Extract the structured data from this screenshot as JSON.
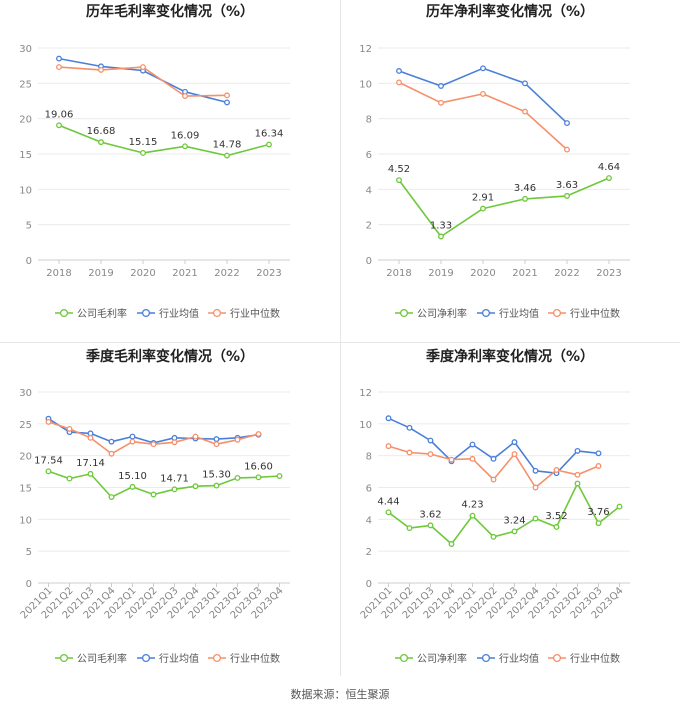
{
  "colors": {
    "company": "#6dc83a",
    "avg": "#4a7fd9",
    "median": "#f5906a",
    "axis_text": "#888888",
    "grid": "#ebebeb",
    "title": "#222222"
  },
  "source_text": "数据来源：恒生聚源",
  "chart_data": [
    {
      "type": "line",
      "title": "历年毛利率变化情况（%）",
      "categories": [
        "2018",
        "2019",
        "2020",
        "2021",
        "2022",
        "2023"
      ],
      "ylim": [
        0,
        30
      ],
      "yticks": [
        0,
        5,
        10,
        15,
        20,
        25,
        30
      ],
      "grid": true,
      "legend": "bottom",
      "series": [
        {
          "name": "公司毛利率",
          "values": [
            19.06,
            16.68,
            15.15,
            16.09,
            14.78,
            16.34
          ],
          "labels": [
            "19.06",
            "16.68",
            "15.15",
            "16.09",
            "14.78",
            "16.34"
          ]
        },
        {
          "name": "行业均值",
          "values": [
            28.5,
            27.4,
            26.8,
            23.8,
            22.3,
            null
          ]
        },
        {
          "name": "行业中位数",
          "values": [
            27.3,
            26.9,
            27.3,
            23.2,
            23.3,
            null
          ]
        }
      ]
    },
    {
      "type": "line",
      "title": "历年净利率变化情况（%）",
      "categories": [
        "2018",
        "2019",
        "2020",
        "2021",
        "2022",
        "2023"
      ],
      "ylim": [
        0,
        12
      ],
      "yticks": [
        0,
        2,
        4,
        6,
        8,
        10,
        12
      ],
      "grid": true,
      "legend": "bottom",
      "series": [
        {
          "name": "公司净利率",
          "values": [
            4.52,
            1.33,
            2.91,
            3.46,
            3.63,
            4.64
          ],
          "labels": [
            "4.52",
            "1.33",
            "2.91",
            "3.46",
            "3.63",
            "4.64"
          ]
        },
        {
          "name": "行业均值",
          "values": [
            10.7,
            9.85,
            10.85,
            10.0,
            7.75,
            null
          ]
        },
        {
          "name": "行业中位数",
          "values": [
            10.05,
            8.9,
            9.4,
            8.4,
            6.25,
            null
          ]
        }
      ]
    },
    {
      "type": "line",
      "title": "季度毛利率变化情况（%）",
      "categories": [
        "2021Q1",
        "2021Q2",
        "2021Q3",
        "2021Q4",
        "2022Q1",
        "2022Q2",
        "2022Q3",
        "2022Q4",
        "2023Q1",
        "2023Q2",
        "2023Q3",
        "2023Q4"
      ],
      "ylim": [
        0,
        30
      ],
      "yticks": [
        0,
        5,
        10,
        15,
        20,
        25,
        30
      ],
      "grid": true,
      "legend": "bottom",
      "series": [
        {
          "name": "公司毛利率",
          "values": [
            17.54,
            16.4,
            17.14,
            13.5,
            15.1,
            13.9,
            14.71,
            15.2,
            15.3,
            16.5,
            16.6,
            16.8
          ],
          "labels": [
            "17.54",
            "",
            "17.14",
            "",
            "15.10",
            "",
            "14.71",
            "",
            "15.30",
            "",
            "16.60",
            ""
          ]
        },
        {
          "name": "行业均值",
          "values": [
            25.8,
            23.7,
            23.5,
            22.2,
            23.0,
            22.0,
            22.8,
            22.7,
            22.6,
            22.8,
            23.3,
            null
          ]
        },
        {
          "name": "行业中位数",
          "values": [
            25.3,
            24.2,
            22.8,
            20.3,
            22.2,
            21.8,
            22.1,
            23.0,
            21.8,
            22.5,
            23.4,
            null
          ]
        }
      ]
    },
    {
      "type": "line",
      "title": "季度净利率变化情况（%）",
      "categories": [
        "2021Q1",
        "2021Q2",
        "2021Q3",
        "2021Q4",
        "2022Q1",
        "2022Q2",
        "2022Q3",
        "2022Q4",
        "2023Q1",
        "2023Q2",
        "2023Q3",
        "2023Q4"
      ],
      "ylim": [
        0,
        12
      ],
      "yticks": [
        0,
        2,
        4,
        6,
        8,
        10,
        12
      ],
      "grid": true,
      "legend": "bottom",
      "series": [
        {
          "name": "公司净利率",
          "values": [
            4.44,
            3.45,
            3.62,
            2.45,
            4.23,
            2.9,
            3.24,
            4.05,
            3.52,
            6.25,
            3.76,
            4.8
          ],
          "labels": [
            "4.44",
            "",
            "3.62",
            "",
            "4.23",
            "",
            "3.24",
            "",
            "3.52",
            "",
            "3.76",
            ""
          ]
        },
        {
          "name": "行业均值",
          "values": [
            10.35,
            9.75,
            8.95,
            7.65,
            8.7,
            7.8,
            8.85,
            7.05,
            6.9,
            8.3,
            8.15,
            null
          ]
        },
        {
          "name": "行业中位数",
          "values": [
            8.6,
            8.2,
            8.1,
            7.75,
            7.8,
            6.5,
            8.1,
            6.0,
            7.1,
            6.8,
            7.35,
            null
          ]
        }
      ]
    }
  ]
}
